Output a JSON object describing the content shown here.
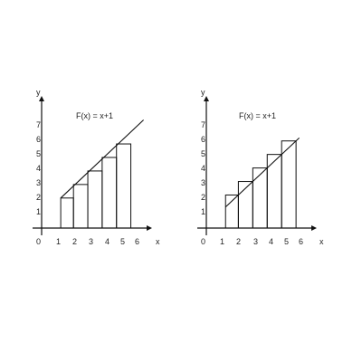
{
  "graphs": [
    {
      "function_label": "F(x) = x+1",
      "axis_x_label": "x",
      "axis_y_label": "y",
      "origin_label": "0",
      "x_ticks": [
        "1",
        "2",
        "3",
        "4",
        "5",
        "6"
      ],
      "y_ticks": [
        "1",
        "2",
        "3",
        "4",
        "5",
        "6",
        "7"
      ],
      "line": {
        "x_start": 1.2,
        "x_end": 5.6
      },
      "rectangles": [
        {
          "x0": 1.2,
          "x1": 2.0,
          "height": 2.0
        },
        {
          "x0": 2.0,
          "x1": 2.9,
          "height": 2.9
        },
        {
          "x0": 2.9,
          "x1": 3.8,
          "height": 3.8
        },
        {
          "x0": 3.8,
          "x1": 4.7,
          "height": 4.7
        },
        {
          "x0": 4.7,
          "x1": 5.6,
          "height": 5.6
        }
      ]
    },
    {
      "function_label": "F(x) = x+1",
      "axis_x_label": "x",
      "axis_y_label": "y",
      "origin_label": "0",
      "x_ticks": [
        "1",
        "2",
        "3",
        "4",
        "5",
        "6"
      ],
      "y_ticks": [
        "1",
        "2",
        "3",
        "4",
        "5",
        "6",
        "7"
      ],
      "line": {
        "x_start": 1.2,
        "x_end": 5.6
      },
      "rectangles": [
        {
          "x0": 1.2,
          "x1": 2.0,
          "height": 2.0
        },
        {
          "x0": 2.0,
          "x1": 2.9,
          "height": 2.9
        },
        {
          "x0": 2.9,
          "x1": 3.8,
          "height": 3.8
        },
        {
          "x0": 3.8,
          "x1": 4.7,
          "height": 4.7
        },
        {
          "x0": 4.7,
          "x1": 5.6,
          "height": 5.6
        }
      ]
    }
  ],
  "colors": {
    "stroke": "#111111",
    "text": "#222222"
  }
}
